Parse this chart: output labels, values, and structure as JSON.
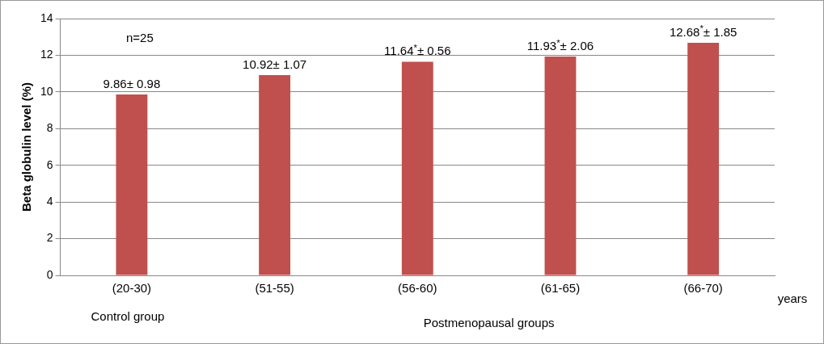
{
  "chart_data": {
    "type": "bar",
    "ylabel": "Beta globulin level (%)",
    "categories": [
      "(20-30)",
      "(51-55)",
      "(56-60)",
      "(61-65)",
      "(66-70)"
    ],
    "values": [
      9.86,
      10.92,
      11.64,
      11.93,
      12.68
    ],
    "color": "#c0504d",
    "value_labels": [
      "9.86± 0.98",
      "10.92± 1.07",
      "11.64$^{*}$± 0.56",
      "11.93$^{*}$± 2.06",
      "12.68$^{*}$± 1.85"
    ],
    "ylim": [
      0,
      14
    ],
    "yticks": [
      0,
      2,
      4,
      6,
      8,
      10,
      12,
      14
    ],
    "grid": "y",
    "legend": false,
    "annotations": [
      "n=25",
      "years",
      "Control group",
      "Postmenopausal groups"
    ]
  }
}
